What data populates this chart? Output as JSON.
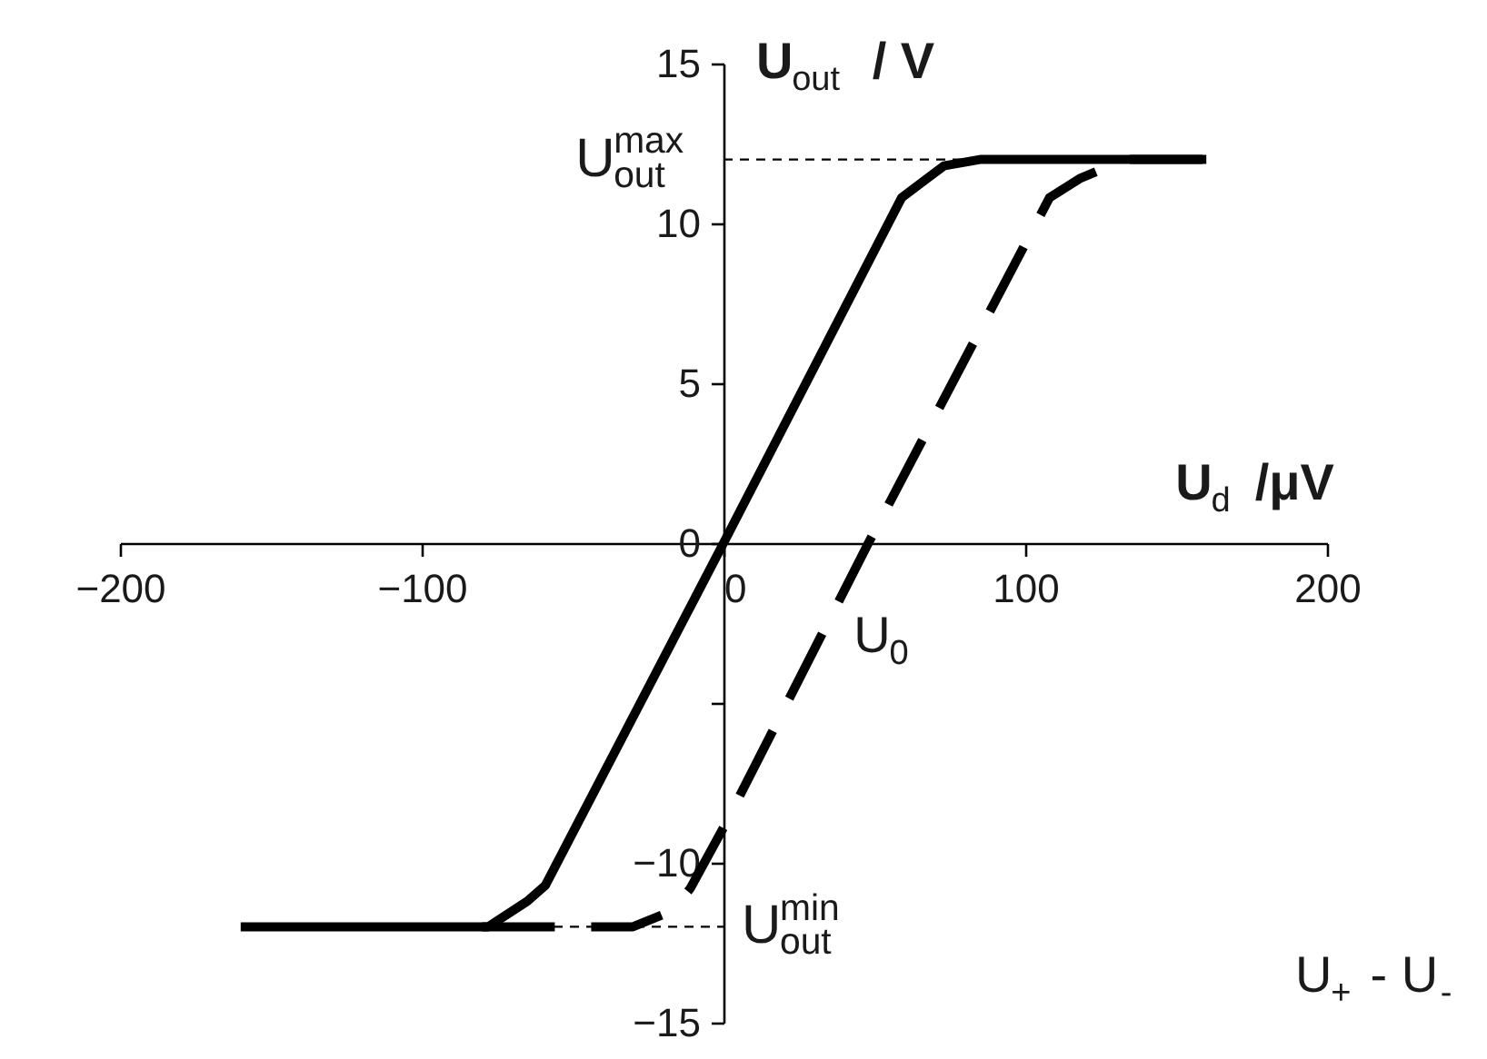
{
  "chart_data": {
    "type": "line",
    "xlabel": "U$_{d}$ /μV",
    "ylabel": "U$_{out}$ / V",
    "xlim": [
      -200,
      200
    ],
    "ylim": [
      -15,
      15
    ],
    "xticks": [
      -200,
      -100,
      0,
      100,
      200
    ],
    "yticks": [
      -15,
      -10,
      {
        "value": -5,
        "label": null
      },
      0,
      5,
      10,
      15
    ],
    "series": [
      {
        "color": "#000000",
        "line_style": "solid",
        "x": [
          -160,
          -78,
          -65,
          -59,
          0,
          59,
          73,
          85,
          160
        ],
        "values": [
          -12,
          -12,
          -11.2,
          -10.7,
          0,
          10.8,
          11.8,
          12,
          12
        ]
      },
      {
        "color": "#000000",
        "line_style": "dashed",
        "x": [
          -80,
          -30,
          -17,
          -11,
          0,
          48,
          108,
          118,
          133,
          160
        ],
        "values": [
          -12,
          -12,
          -11.5,
          -10.8,
          -8.9,
          0,
          10.8,
          11.4,
          12,
          12
        ]
      }
    ],
    "ref_lines": [
      {
        "axis": "y",
        "value": 12,
        "label": "U$^{max}$$_{out}$",
        "line_style": "dashed",
        "color": "#000000"
      },
      {
        "axis": "y",
        "value": -12,
        "label": "U$^{min}$$_{out}$",
        "line_style": "dashed",
        "color": "#000000"
      }
    ],
    "annotations": [
      {
        "text": "U$_{0}$",
        "x": 48,
        "y": 0
      },
      "U$_{+}$ - U$_{-}$"
    ],
    "grid": false
  }
}
